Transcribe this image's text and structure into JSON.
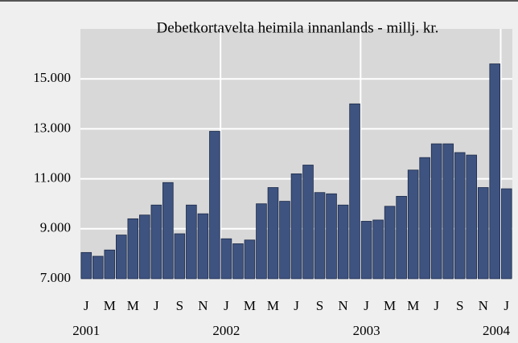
{
  "chart_data": {
    "type": "bar",
    "title": "Debetkortavelta heimila innanlands - millj. kr.",
    "categories": [
      "J",
      null,
      "M",
      null,
      "M",
      null,
      "J",
      null,
      "S",
      null,
      "N",
      null,
      "J",
      null,
      "M",
      null,
      "M",
      null,
      "J",
      null,
      "S",
      null,
      "N",
      null,
      "J",
      null,
      "M",
      null,
      "M",
      null,
      "J",
      null,
      "S",
      null,
      "N",
      null,
      "J"
    ],
    "category_years": [
      "2001",
      null,
      null,
      null,
      null,
      null,
      null,
      null,
      null,
      null,
      null,
      null,
      "2002",
      null,
      null,
      null,
      null,
      null,
      null,
      null,
      null,
      null,
      null,
      null,
      "2003",
      null,
      null,
      null,
      null,
      null,
      null,
      null,
      null,
      null,
      null,
      null,
      "2004"
    ],
    "values": [
      8050,
      7900,
      8150,
      8750,
      9400,
      9550,
      9950,
      10850,
      8800,
      9950,
      9600,
      12900,
      8600,
      8400,
      8550,
      10000,
      10650,
      10100,
      11200,
      11550,
      10450,
      10400,
      9950,
      14000,
      9300,
      9350,
      9900,
      10300,
      11350,
      11850,
      12400,
      12400,
      12050,
      11950,
      10650,
      15600,
      10600
    ],
    "color": "#3e5380",
    "ylim": [
      7000,
      17000
    ],
    "yticks": [
      {
        "value": 7000,
        "label": "7.000"
      },
      {
        "value": 9000,
        "label": "9.000"
      },
      {
        "value": 11000,
        "label": "11.000"
      },
      {
        "value": 13000,
        "label": "13.000"
      },
      {
        "value": 15000,
        "label": "15.000"
      }
    ],
    "grid": true
  }
}
